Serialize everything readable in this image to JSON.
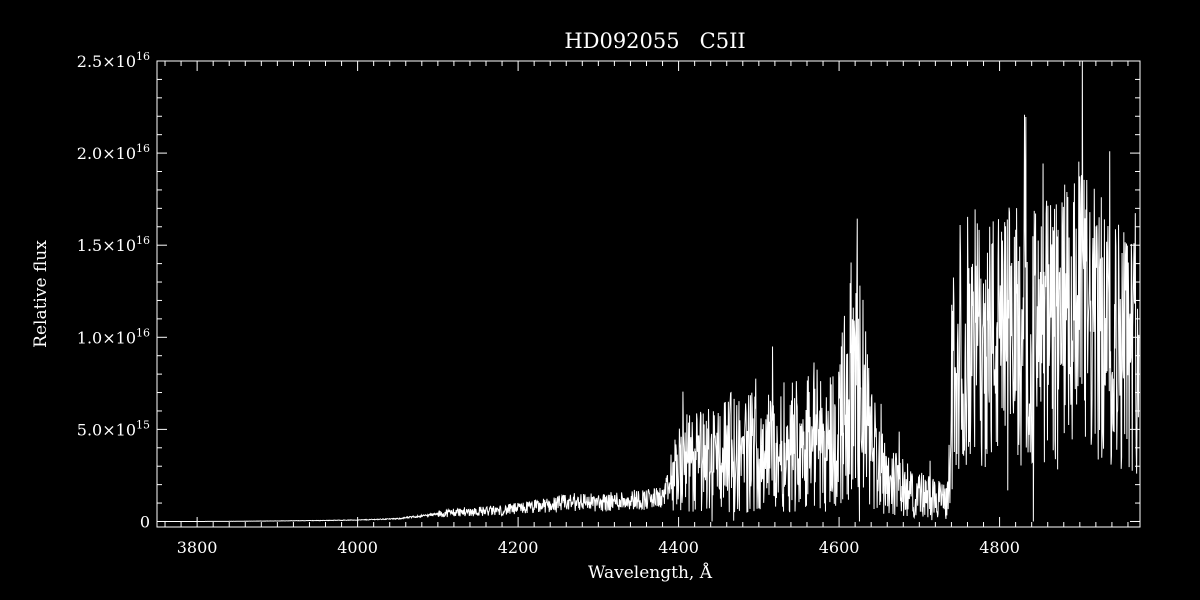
{
  "colors": {
    "background": "#000000",
    "foreground": "#ffffff"
  },
  "chart_data": {
    "type": "line",
    "title": "HD092055   C5II",
    "xlabel": "Wavelength, Å",
    "ylabel": "Relative flux",
    "xlim": [
      3750,
      4975
    ],
    "ylim": [
      -300000000000000.0,
      2.5e+16
    ],
    "xticks": [
      3800,
      4000,
      4200,
      4400,
      4600,
      4800
    ],
    "xtick_labels": [
      "3800",
      "4000",
      "4200",
      "4400",
      "4600",
      "4800"
    ],
    "yticks": [
      0,
      5000000000000000.0,
      1e+16,
      1.5e+16,
      2e+16,
      2.5e+16
    ],
    "ytick_labels": [
      {
        "mant": "0",
        "exp": ""
      },
      {
        "mant": "5.0×10",
        "exp": "15"
      },
      {
        "mant": "1.0×10",
        "exp": "16"
      },
      {
        "mant": "1.5×10",
        "exp": "16"
      },
      {
        "mant": "2.0×10",
        "exp": "16"
      },
      {
        "mant": "2.5×10",
        "exp": "16"
      }
    ],
    "grid": false,
    "series": [
      {
        "x": [
          3755,
          3800,
          3850,
          3900,
          3950,
          4000,
          4050,
          4080,
          4100,
          4120,
          4150,
          4180,
          4200,
          4220,
          4240,
          4260,
          4280,
          4300,
          4320,
          4340,
          4360,
          4380,
          4390,
          4400,
          4420,
          4440,
          4460,
          4480,
          4500,
          4520,
          4540,
          4560,
          4570,
          4580,
          4600,
          4610,
          4620,
          4630,
          4640,
          4660,
          4680,
          4700,
          4720,
          4735,
          4742,
          4750,
          4770,
          4800,
          4820,
          4850,
          4870,
          4890,
          4900,
          4920,
          4940,
          4960,
          4975
        ],
        "y": [
          0.0,
          0.0,
          10000000000000.0,
          30000000000000.0,
          50000000000000.0,
          80000000000000.0,
          150000000000000.0,
          300000000000000.0,
          400000000000000.0,
          500000000000000.0,
          550000000000000.0,
          600000000000000.0,
          700000000000000.0,
          800000000000000.0,
          900000000000000.0,
          1000000000000000.0,
          1100000000000000.0,
          1000000000000000.0,
          1100000000000000.0,
          1200000000000000.0,
          1200000000000000.0,
          1300000000000000.0,
          2000000000000000.0,
          3000000000000000.0,
          3200000000000000.0,
          3500000000000000.0,
          3800000000000000.0,
          3600000000000000.0,
          4000000000000000.0,
          3800000000000000.0,
          4200000000000000.0,
          4600000000000000.0,
          4800000000000000.0,
          4000000000000000.0,
          5000000000000000.0,
          7000000000000000.0,
          8000000000000000.0,
          6500000000000000.0,
          4000000000000000.0,
          2500000000000000.0,
          1800000000000000.0,
          1500000000000000.0,
          1200000000000000.0,
          1100000000000000.0,
          8000000000000000.0,
          9500000000000000.0,
          1e+16,
          9800000000000000.0,
          1.02e+16,
          1e+16,
          1.05e+16,
          1.1e+16,
          1.15e+16,
          1.05e+16,
          1e+16,
          9500000000000000.0,
          9000000000000000.0
        ]
      }
    ]
  }
}
